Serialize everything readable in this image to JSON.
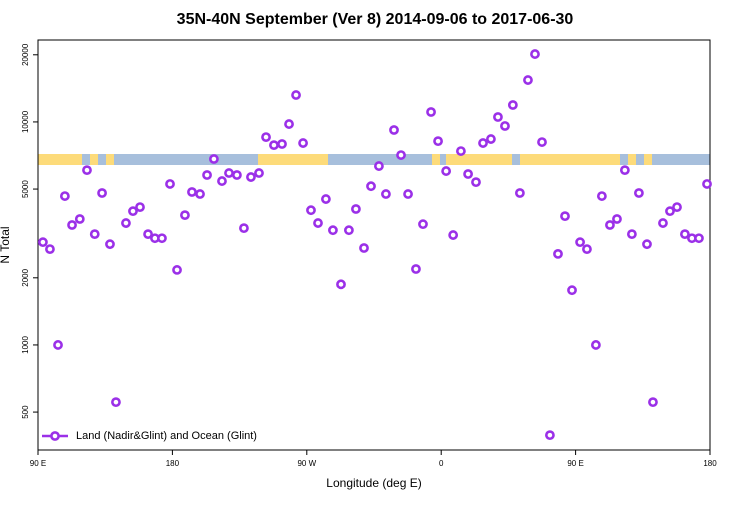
{
  "chart_data": {
    "type": "scatter",
    "title": "35N-40N September (Ver 8)   2014-09-06 to 2017-06-30",
    "x_label": "Longitude (deg E)",
    "y_label": "N Total",
    "xlim": [
      90,
      540
    ],
    "xticks": [
      {
        "value": 90,
        "label": "90 E"
      },
      180,
      {
        "value": 270,
        "label": "90 W"
      },
      {
        "value": 360,
        "label": "0"
      },
      {
        "value": 450,
        "label": "90 E"
      },
      {
        "value": 540,
        "label": "180"
      }
    ],
    "ylim": [
      338,
      23300
    ],
    "yticks": [
      500,
      1000,
      2000,
      5000,
      10000,
      20000
    ],
    "log_y": true,
    "legend": "lower left",
    "series": [
      {
        "name": "Land (Nadir&Glint) and Ocean (Glint)",
        "color": "#9b30e8",
        "x": [
          93.3,
          98,
          103.4,
          108,
          112.8,
          118,
          122.8,
          128,
          132.9,
          138.2,
          142.2,
          148.9,
          153.6,
          158.3,
          163.7,
          168.3,
          173,
          178.4,
          183.1,
          188.4,
          193.1,
          198.5,
          203.2,
          207.8,
          213.2,
          217.9,
          223.2,
          227.9,
          232.6,
          238,
          242.7,
          248,
          253.4,
          258.1,
          262.8,
          267.5,
          272.8,
          277.5,
          282.8,
          287.5,
          292.9,
          298.2,
          302.9,
          308.3,
          313,
          318.3,
          323,
          328.4,
          333.1,
          337.8,
          343.1,
          347.8,
          353.2,
          357.9,
          363.3,
          368,
          373.2,
          378,
          383.3,
          388,
          393.3,
          398,
          402.7,
          408,
          412.7,
          418.1,
          422.8,
          427.5,
          432.8,
          438.2,
          442.9,
          447.6,
          453,
          457.6,
          463.6,
          467.6,
          473,
          477.7,
          483,
          487.7,
          492.4,
          497.8,
          501.8,
          508.5,
          513.2,
          517.9,
          523.2,
          527.9,
          532.6,
          538
        ],
        "values": [
          2890,
          2690,
          1000,
          4650,
          3450,
          3670,
          6080,
          3140,
          4800,
          2830,
          554,
          3520,
          3980,
          4150,
          3140,
          3010,
          3010,
          5270,
          2170,
          3820,
          4850,
          4750,
          5780,
          6820,
          5430,
          5900,
          5780,
          3340,
          5660,
          5900,
          8550,
          7870,
          7960,
          9780,
          13200,
          8040,
          4020,
          3520,
          4510,
          3270,
          1870,
          3270,
          4070,
          2720,
          5150,
          6340,
          4750,
          9200,
          7100,
          4750,
          2190,
          3480,
          11080,
          8200,
          6020,
          3110,
          7400,
          5840,
          5370,
          8040,
          8380,
          10520,
          9590,
          11910,
          4800,
          15410,
          20150,
          8120,
          394,
          2560,
          3780,
          1760,
          2890,
          2690,
          1000,
          4650,
          3450,
          3670,
          6080,
          3140,
          4800,
          2830,
          554,
          3520,
          3980,
          4150,
          3140,
          3010,
          3010,
          5270
        ]
      }
    ]
  }
}
